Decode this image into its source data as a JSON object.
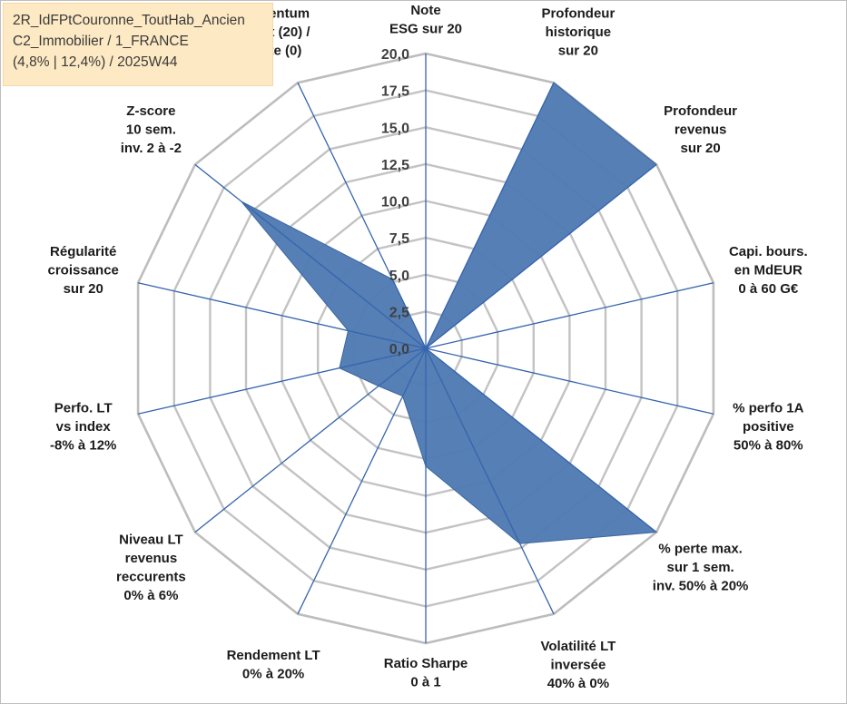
{
  "chart_data": {
    "type": "radar",
    "title_lines": [
      "2R_IdFPtCouronne_ToutHab_Ancien",
      "C2_Immobilier / 1_FRANCE",
      "(4,8% | 12,4%) / 2025W44"
    ],
    "rmax": 20,
    "ticks": [
      "0,0",
      "2,5",
      "5,0",
      "7,5",
      "10,0",
      "12,5",
      "15,0",
      "17,5",
      "20,0"
    ],
    "tick_values": [
      0,
      2.5,
      5,
      7.5,
      10,
      12.5,
      15,
      17.5,
      20
    ],
    "grid": true,
    "axes": [
      {
        "label": [
          "Note",
          "ESG sur 20"
        ],
        "value": 0
      },
      {
        "label": [
          "Profondeur",
          "historique",
          "sur 20"
        ],
        "value": 20
      },
      {
        "label": [
          "Profondeur",
          "revenus",
          "sur 20"
        ],
        "value": 20
      },
      {
        "label": [
          "Capi. bours.",
          "en MdEUR",
          "0 à 60 G€"
        ],
        "value": 0
      },
      {
        "label": [
          "% perfo 1A",
          "positive",
          "50% à 80%"
        ],
        "value": 0
      },
      {
        "label": [
          "% perte max.",
          "sur 1 sem.",
          "inv. 50% à 20%"
        ],
        "value": 20
      },
      {
        "label": [
          "Volatilité LT",
          "inversée",
          "40% à 0%"
        ],
        "value": 14.7
      },
      {
        "label": [
          "Ratio Sharpe",
          "0 à 1"
        ],
        "value": 8
      },
      {
        "label": [
          "Rendement LT",
          "0% à 20%"
        ],
        "value": 3.6
      },
      {
        "label": [
          "Niveau LT",
          "revenus",
          "reccurents",
          "0% à 6%"
        ],
        "value": 4.1
      },
      {
        "label": [
          "Perfo. LT",
          "vs index",
          "-8% à 12%"
        ],
        "value": 6
      },
      {
        "label": [
          "Régularité",
          "croissance",
          "sur 20"
        ],
        "value": 5.4
      },
      {
        "label": [
          "Z-score",
          "10 sem.",
          "inv. 2 à -2"
        ],
        "value": 16
      },
      {
        "label": [
          "Momentum",
          "Achat (20) /",
          "Vente (0)"
        ],
        "value": 5.2
      }
    ],
    "series": [
      {
        "values": [
          0,
          20,
          20,
          0,
          0,
          20,
          14.7,
          8,
          3.6,
          4.1,
          6,
          5.4,
          16,
          5.2
        ]
      }
    ]
  },
  "colors": {
    "fill": "#4f7bb3",
    "fill_stroke": "#3b66a0",
    "spoke": "#3665ad",
    "grid": "#c3c3c3",
    "outer_grid": "#bdbdbd",
    "label": "#1c1c1c",
    "tick": "#404040",
    "title_bg": "#fde9c3",
    "title_text": "#3a3a3a"
  }
}
